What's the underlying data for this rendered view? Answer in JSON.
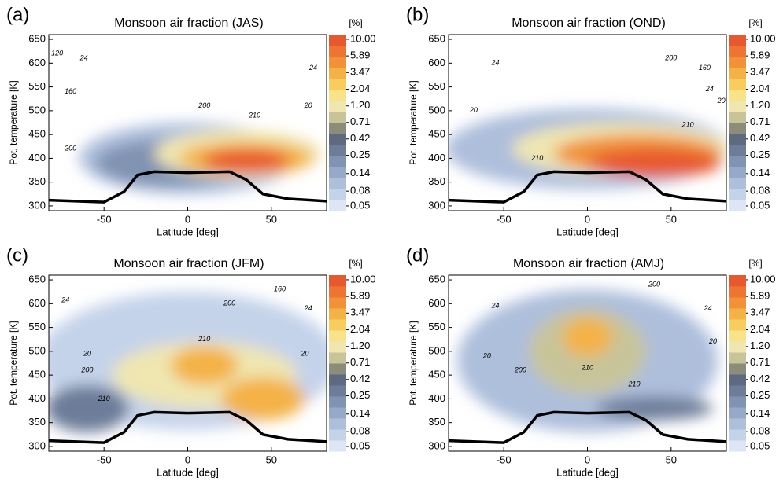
{
  "chart_data": [
    {
      "type": "contour",
      "panel_label": "(a)",
      "title": "Monsoon air fraction (JAS)",
      "xlabel": "Latitude [deg]",
      "ylabel": "Pot. temperature [K]",
      "xlim": [
        -83,
        83
      ],
      "ylim": [
        290,
        660
      ],
      "xticks": [
        -50,
        0,
        50
      ],
      "yticks": [
        300,
        350,
        400,
        450,
        500,
        550,
        600,
        650
      ],
      "colorbar_unit": "[%]",
      "colorbar_log": true,
      "clim": [
        0.043,
        11.6
      ],
      "colorbar_ticks": [
        0.05,
        0.08,
        0.14,
        0.25,
        0.42,
        0.71,
        {
          "value": 1.2,
          "label": "1.20"
        },
        2.04,
        3.47,
        5.89,
        {
          "value": 10,
          "label": "10.00"
        }
      ],
      "colorbar_colors": [
        "#dce6f5",
        "#c5d3ea",
        "#aebfdc",
        "#97a9c9",
        "#8093b3",
        "#6d7d99",
        "#5e6a80",
        "#8c8c7a",
        "#c8c49a",
        "#efe6b0",
        "#f8e38a",
        "#f7cd5e",
        "#f4b246",
        "#f19238",
        "#ee7433",
        "#e8582e"
      ],
      "contour_labels": [
        "120",
        "24",
        "160",
        "200",
        "20",
        "24",
        "200",
        "210"
      ]
    },
    {
      "type": "contour",
      "panel_label": "(b)",
      "title": "Monsoon air fraction (OND)",
      "xlabel": "Latitude [deg]",
      "ylabel": "Pot. temperature [K]",
      "xlim": [
        -83,
        83
      ],
      "ylim": [
        290,
        660
      ],
      "xticks": [
        -50,
        0,
        50
      ],
      "yticks": [
        300,
        350,
        400,
        450,
        500,
        550,
        600,
        650
      ],
      "colorbar_unit": "[%]",
      "colorbar_log": true,
      "clim": [
        0.043,
        11.6
      ],
      "colorbar_ticks": [
        0.05,
        0.08,
        0.14,
        0.25,
        0.42,
        0.71,
        {
          "value": 1.2,
          "label": "1.20"
        },
        2.04,
        3.47,
        5.89,
        {
          "value": 10,
          "label": "10.00"
        }
      ],
      "colorbar_colors": [
        "#dce6f5",
        "#c5d3ea",
        "#aebfdc",
        "#97a9c9",
        "#8093b3",
        "#6d7d99",
        "#5e6a80",
        "#8c8c7a",
        "#c8c49a",
        "#efe6b0",
        "#f8e38a",
        "#f7cd5e",
        "#f4b246",
        "#f19238",
        "#ee7433",
        "#e8582e"
      ],
      "contour_labels": [
        "24",
        "20",
        "210",
        "200",
        "160",
        "24",
        "20",
        "210"
      ]
    },
    {
      "type": "contour",
      "panel_label": "(c)",
      "title": "Monsoon air fraction (JFM)",
      "xlabel": "Latitude [deg]",
      "ylabel": "Pot. temperature [K]",
      "xlim": [
        -83,
        83
      ],
      "ylim": [
        290,
        660
      ],
      "xticks": [
        -50,
        0,
        50
      ],
      "yticks": [
        300,
        350,
        400,
        450,
        500,
        550,
        600,
        650
      ],
      "colorbar_unit": "[%]",
      "colorbar_log": true,
      "clim": [
        0.043,
        11.6
      ],
      "colorbar_ticks": [
        0.05,
        0.08,
        0.14,
        0.25,
        0.42,
        0.71,
        {
          "value": 1.2,
          "label": "1.20"
        },
        2.04,
        3.47,
        5.89,
        {
          "value": 10,
          "label": "10.00"
        }
      ],
      "colorbar_colors": [
        "#dce6f5",
        "#c5d3ea",
        "#aebfdc",
        "#97a9c9",
        "#8093b3",
        "#6d7d99",
        "#5e6a80",
        "#8c8c7a",
        "#c8c49a",
        "#efe6b0",
        "#f8e38a",
        "#f7cd5e",
        "#f4b246",
        "#f19238",
        "#ee7433",
        "#e8582e"
      ],
      "contour_labels": [
        "24",
        "20",
        "200",
        "210",
        "210",
        "200",
        "160",
        "24",
        "20"
      ]
    },
    {
      "type": "contour",
      "panel_label": "(d)",
      "title": "Monsoon air fraction (AMJ)",
      "xlabel": "Latitude [deg]",
      "ylabel": "Pot. temperature [K]",
      "xlim": [
        -83,
        83
      ],
      "ylim": [
        290,
        660
      ],
      "xticks": [
        -50,
        0,
        50
      ],
      "yticks": [
        300,
        350,
        400,
        450,
        500,
        550,
        600,
        650
      ],
      "colorbar_unit": "[%]",
      "colorbar_log": true,
      "clim": [
        0.043,
        11.6
      ],
      "colorbar_ticks": [
        0.05,
        0.08,
        0.14,
        0.25,
        0.42,
        0.71,
        {
          "value": 1.2,
          "label": "1.20"
        },
        2.04,
        3.47,
        5.89,
        {
          "value": 10,
          "label": "10.00"
        }
      ],
      "colorbar_colors": [
        "#dce6f5",
        "#c5d3ea",
        "#aebfdc",
        "#97a9c9",
        "#8093b3",
        "#6d7d99",
        "#5e6a80",
        "#8c8c7a",
        "#c8c49a",
        "#efe6b0",
        "#f8e38a",
        "#f7cd5e",
        "#f4b246",
        "#f19238",
        "#ee7433",
        "#e8582e"
      ],
      "contour_labels": [
        "24",
        "20",
        "200",
        "210",
        "200",
        "210",
        "24",
        "20"
      ]
    }
  ]
}
